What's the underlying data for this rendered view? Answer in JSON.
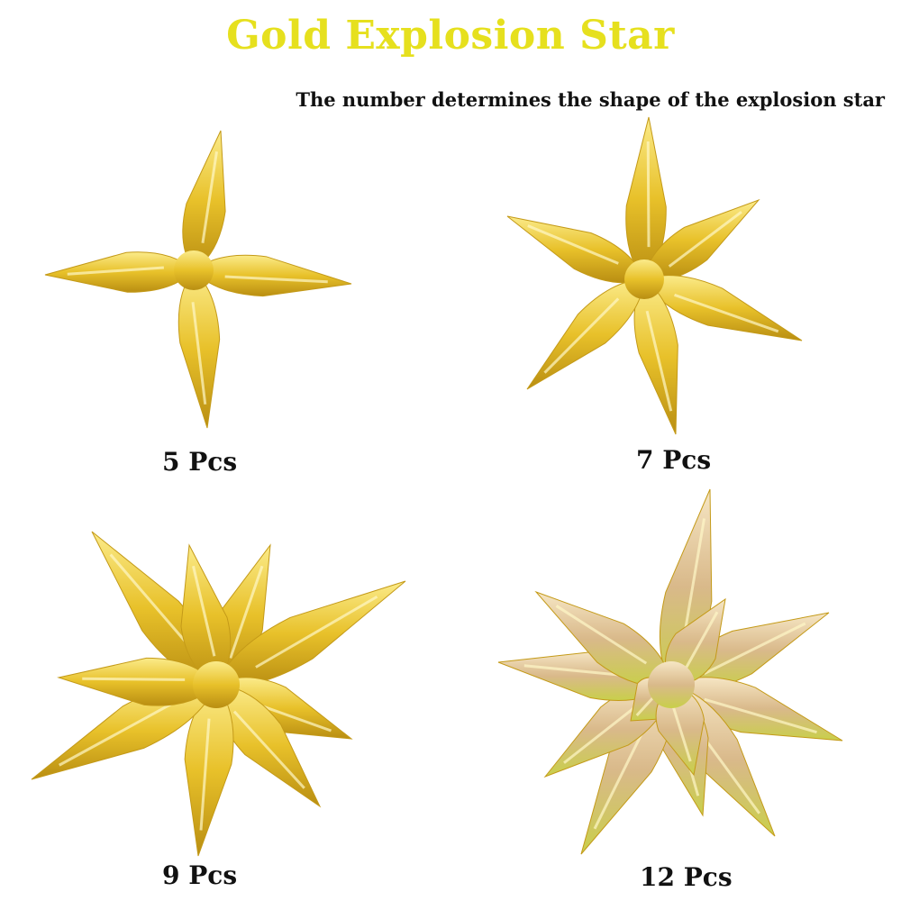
{
  "title": "Gold Explosion Star",
  "subtitle": "The number determines the shape of the explosion star",
  "variants": [
    {
      "label": "5 Pcs",
      "finish": "gold"
    },
    {
      "label": "7 Pcs",
      "finish": "gold"
    },
    {
      "label": "9 Pcs",
      "finish": "gold"
    },
    {
      "label": "12 Pcs",
      "finish": "rose-gold iridescent"
    }
  ],
  "colors": {
    "title": "#e6e01e",
    "gold": "#e8c12a",
    "gold_light": "#fbeb8a",
    "rose_gold": "#d9b98a"
  }
}
